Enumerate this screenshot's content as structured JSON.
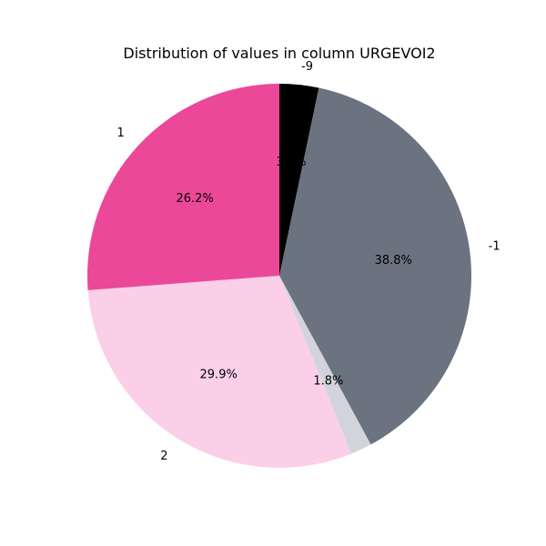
{
  "chart_data": {
    "type": "pie",
    "title": "Distribution of values in column URGEVOI2",
    "start_angle_deg": 90,
    "direction": "clockwise",
    "slices": [
      {
        "label": "-9",
        "value": 3.3,
        "pct_label": "3.3%",
        "color": "#000000"
      },
      {
        "label": "-1",
        "value": 38.8,
        "pct_label": "38.8%",
        "color": "#6b7280"
      },
      {
        "label": "",
        "value": 1.8,
        "pct_label": "1.8%",
        "color": "#d1d5db"
      },
      {
        "label": "2",
        "value": 29.9,
        "pct_label": "29.9%",
        "color": "#fbcfe8"
      },
      {
        "label": "1",
        "value": 26.2,
        "pct_label": "26.2%",
        "color": "#ec4899"
      }
    ]
  }
}
